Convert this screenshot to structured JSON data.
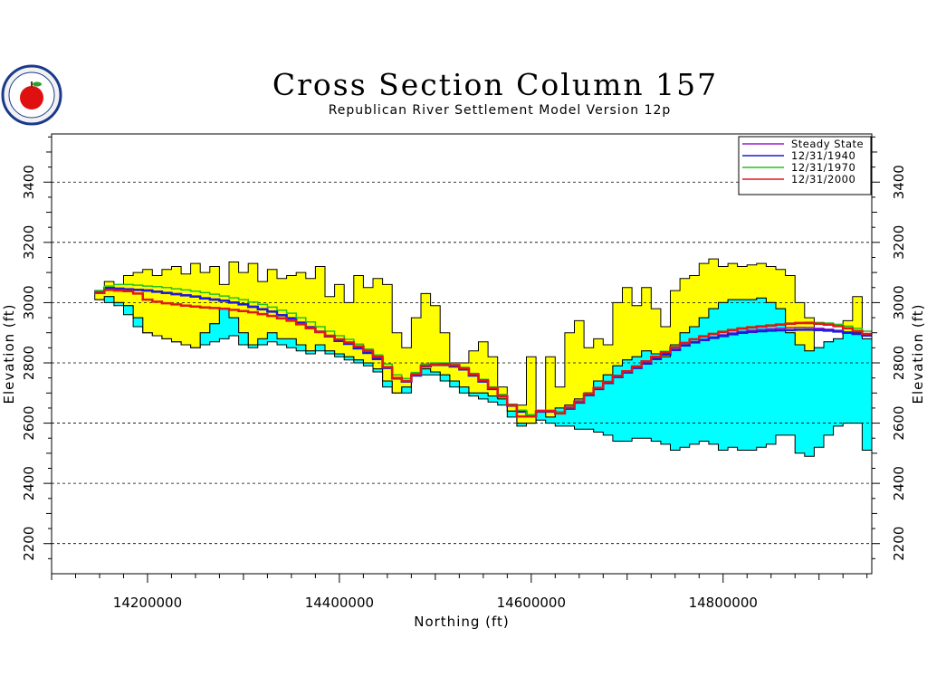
{
  "chart_data": {
    "type": "area",
    "title": "Cross Section Column 157",
    "subtitle": "Republican River Settlement Model Version 12p",
    "xlabel": "Northing (ft)",
    "ylabel": "Elevation (ft)",
    "ylabel_right": "Elevation (ft)",
    "xlim": [
      14100000,
      14955000
    ],
    "ylim": [
      2100,
      3560
    ],
    "x_ticks": [
      14200000,
      14400000,
      14600000,
      14800000
    ],
    "x_tick_labels": [
      "14200000",
      "14400000",
      "14600000",
      "14800000"
    ],
    "y_ticks": [
      2200,
      2400,
      2600,
      2800,
      3000,
      3200,
      3400
    ],
    "y_tick_labels": [
      "2200",
      "2400",
      "2600",
      "2800",
      "3000",
      "3200",
      "3400"
    ],
    "grid": "horizontal dashed at major y ticks",
    "legend_position": "top-right",
    "colors": {
      "layer_upper": "#ffff00",
      "layer_lower": "#00ffff",
      "steady_state": "#9a1ac8",
      "y1940": "#1c1cd8",
      "y1970": "#22c31a",
      "y2000": "#e01818",
      "grid": "#000000"
    },
    "x": [
      14150000,
      14160000,
      14170000,
      14180000,
      14190000,
      14200000,
      14210000,
      14220000,
      14230000,
      14240000,
      14250000,
      14260000,
      14270000,
      14280000,
      14290000,
      14300000,
      14310000,
      14320000,
      14330000,
      14340000,
      14350000,
      14360000,
      14370000,
      14380000,
      14390000,
      14400000,
      14410000,
      14420000,
      14430000,
      14440000,
      14450000,
      14460000,
      14470000,
      14480000,
      14490000,
      14500000,
      14510000,
      14520000,
      14530000,
      14540000,
      14550000,
      14560000,
      14570000,
      14580000,
      14590000,
      14600000,
      14610000,
      14620000,
      14630000,
      14640000,
      14650000,
      14660000,
      14670000,
      14680000,
      14690000,
      14700000,
      14710000,
      14720000,
      14730000,
      14740000,
      14750000,
      14760000,
      14770000,
      14780000,
      14790000,
      14800000,
      14810000,
      14820000,
      14830000,
      14840000,
      14850000,
      14860000,
      14870000,
      14880000,
      14890000,
      14900000,
      14910000,
      14920000,
      14930000,
      14940000,
      14950000
    ],
    "layers": {
      "land_surface": [
        3040,
        3070,
        3060,
        3090,
        3100,
        3110,
        3090,
        3110,
        3120,
        3095,
        3130,
        3100,
        3120,
        3060,
        3135,
        3100,
        3130,
        3070,
        3110,
        3080,
        3090,
        3100,
        3080,
        3120,
        3020,
        3060,
        3000,
        3090,
        3050,
        3080,
        3060,
        2900,
        2850,
        2950,
        3030,
        2990,
        2900,
        2800,
        2800,
        2840,
        2870,
        2820,
        2720,
        2660,
        2660,
        2820,
        2640,
        2820,
        2720,
        2900,
        2940,
        2850,
        2880,
        2860,
        3000,
        3050,
        2990,
        3050,
        2980,
        2920,
        3040,
        3080,
        3090,
        3130,
        3145,
        3120,
        3130,
        3120,
        3125,
        3130,
        3120,
        3110,
        3090,
        3000,
        2950,
        2850,
        2800,
        2820,
        2940,
        3020,
        2850
      ],
      "layer1_bottom": [
        3010,
        3020,
        3000,
        2990,
        2950,
        2900,
        2890,
        2880,
        2870,
        2860,
        2850,
        2900,
        2930,
        2980,
        2950,
        2900,
        2860,
        2880,
        2900,
        2880,
        2880,
        2860,
        2840,
        2860,
        2840,
        2830,
        2820,
        2810,
        2800,
        2780,
        2740,
        2700,
        2720,
        2760,
        2780,
        2770,
        2760,
        2740,
        2720,
        2700,
        2700,
        2690,
        2680,
        2640,
        2600,
        2600,
        2640,
        2620,
        2650,
        2660,
        2680,
        2700,
        2740,
        2760,
        2790,
        2810,
        2820,
        2840,
        2830,
        2820,
        2860,
        2900,
        2920,
        2950,
        2980,
        3000,
        3010,
        3010,
        3010,
        3015,
        3000,
        2980,
        2900,
        2860,
        2840,
        2850,
        2870,
        2880,
        2900,
        2900,
        2880
      ],
      "layer2_bottom": [
        3010,
        3000,
        2990,
        2960,
        2920,
        2900,
        2890,
        2880,
        2870,
        2860,
        2850,
        2860,
        2870,
        2880,
        2890,
        2860,
        2850,
        2860,
        2870,
        2860,
        2850,
        2840,
        2830,
        2840,
        2830,
        2820,
        2810,
        2800,
        2790,
        2770,
        2720,
        2700,
        2700,
        2760,
        2760,
        2760,
        2740,
        2720,
        2700,
        2690,
        2680,
        2670,
        2660,
        2620,
        2590,
        2600,
        2610,
        2600,
        2590,
        2590,
        2580,
        2580,
        2570,
        2560,
        2540,
        2540,
        2550,
        2550,
        2540,
        2530,
        2510,
        2520,
        2530,
        2540,
        2530,
        2510,
        2520,
        2510,
        2510,
        2520,
        2530,
        2560,
        2560,
        2500,
        2490,
        2520,
        2560,
        2590,
        2600,
        2600,
        2510
      ]
    },
    "series": [
      {
        "name": "Steady State",
        "values": [
          3040,
          3050,
          3048,
          3046,
          3044,
          3042,
          3038,
          3034,
          3030,
          3026,
          3022,
          3016,
          3012,
          3008,
          3002,
          2996,
          2988,
          2980,
          2972,
          2960,
          2950,
          2935,
          2920,
          2905,
          2890,
          2875,
          2865,
          2850,
          2835,
          2815,
          2785,
          2750,
          2740,
          2760,
          2790,
          2795,
          2795,
          2790,
          2780,
          2760,
          2740,
          2715,
          2690,
          2660,
          2640,
          2625,
          2640,
          2640,
          2635,
          2650,
          2670,
          2695,
          2715,
          2735,
          2755,
          2770,
          2785,
          2800,
          2815,
          2830,
          2845,
          2860,
          2870,
          2878,
          2886,
          2893,
          2899,
          2904,
          2908,
          2911,
          2913,
          2915,
          2917,
          2918,
          2917,
          2915,
          2912,
          2908,
          2903,
          2898,
          2892
        ]
      },
      {
        "name": "12/31/1940",
        "values": [
          3038,
          3048,
          3046,
          3044,
          3042,
          3040,
          3036,
          3032,
          3028,
          3024,
          3020,
          3014,
          3010,
          3006,
          3000,
          2994,
          2986,
          2978,
          2970,
          2958,
          2948,
          2933,
          2918,
          2903,
          2888,
          2873,
          2863,
          2848,
          2833,
          2813,
          2783,
          2748,
          2738,
          2758,
          2788,
          2793,
          2793,
          2788,
          2778,
          2758,
          2738,
          2713,
          2688,
          2658,
          2638,
          2623,
          2638,
          2638,
          2633,
          2648,
          2668,
          2693,
          2713,
          2733,
          2753,
          2768,
          2783,
          2798,
          2813,
          2828,
          2843,
          2858,
          2868,
          2876,
          2883,
          2889,
          2895,
          2900,
          2903,
          2905,
          2907,
          2908,
          2909,
          2910,
          2910,
          2909,
          2907,
          2904,
          2900,
          2896,
          2891
        ]
      },
      {
        "name": "12/31/1970",
        "values": [
          3040,
          3055,
          3060,
          3060,
          3058,
          3055,
          3053,
          3050,
          3046,
          3042,
          3038,
          3033,
          3028,
          3022,
          3016,
          3010,
          3002,
          2994,
          2985,
          2975,
          2965,
          2950,
          2936,
          2920,
          2905,
          2890,
          2878,
          2862,
          2846,
          2826,
          2796,
          2760,
          2748,
          2768,
          2796,
          2800,
          2800,
          2795,
          2785,
          2765,
          2745,
          2720,
          2695,
          2663,
          2643,
          2628,
          2643,
          2643,
          2638,
          2653,
          2673,
          2698,
          2718,
          2738,
          2758,
          2773,
          2790,
          2807,
          2822,
          2838,
          2854,
          2868,
          2880,
          2890,
          2898,
          2905,
          2911,
          2916,
          2920,
          2923,
          2926,
          2929,
          2932,
          2934,
          2935,
          2934,
          2932,
          2928,
          2922,
          2915,
          2905
        ]
      },
      {
        "name": "12/31/2000",
        "values": [
          3032,
          3042,
          3040,
          3038,
          3030,
          3010,
          3003,
          2998,
          2994,
          2990,
          2987,
          2984,
          2982,
          2980,
          2976,
          2972,
          2968,
          2962,
          2956,
          2948,
          2940,
          2928,
          2915,
          2902,
          2890,
          2878,
          2868,
          2855,
          2840,
          2820,
          2786,
          2750,
          2740,
          2762,
          2790,
          2795,
          2796,
          2792,
          2782,
          2762,
          2742,
          2716,
          2690,
          2660,
          2622,
          2622,
          2640,
          2640,
          2632,
          2652,
          2672,
          2697,
          2717,
          2737,
          2757,
          2772,
          2788,
          2805,
          2820,
          2835,
          2852,
          2866,
          2878,
          2888,
          2896,
          2903,
          2909,
          2914,
          2918,
          2921,
          2924,
          2927,
          2930,
          2932,
          2932,
          2930,
          2927,
          2922,
          2915,
          2906,
          2896
        ]
      }
    ]
  }
}
